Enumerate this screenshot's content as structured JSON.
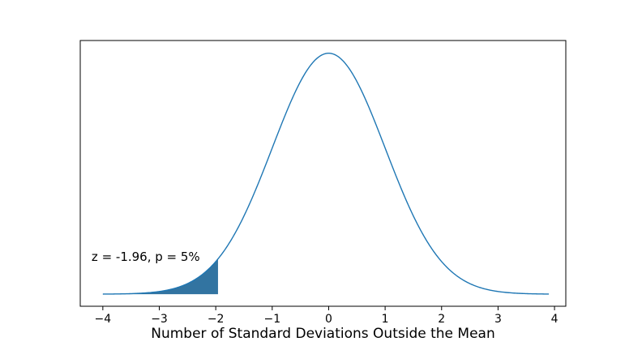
{
  "chart_data": {
    "type": "area",
    "title": "",
    "xlabel": "Number of Standard Deviations Outside the Mean",
    "ylabel": "",
    "xlim": [
      -4.4,
      4.2
    ],
    "ylim": [
      -0.02,
      0.42
    ],
    "x_ticks": [
      -4,
      -3,
      -2,
      -1,
      0,
      1,
      2,
      3,
      4
    ],
    "x_tick_labels": [
      "−4",
      "−3",
      "−2",
      "−1",
      "0",
      "1",
      "2",
      "3",
      "4"
    ],
    "y_ticks_visible": false,
    "grid": false,
    "legend": false,
    "series": [
      {
        "kind": "line",
        "distribution": "standard normal pdf",
        "x_range": [
          -4.0,
          3.9
        ],
        "points": [
          [
            -4.0,
            0.0001
          ],
          [
            -3.5,
            0.0009
          ],
          [
            -3.0,
            0.0044
          ],
          [
            -2.5,
            0.0175
          ],
          [
            -2.0,
            0.054
          ],
          [
            -1.5,
            0.1295
          ],
          [
            -1.0,
            0.242
          ],
          [
            -0.5,
            0.3521
          ],
          [
            0.0,
            0.3989
          ],
          [
            0.5,
            0.3521
          ],
          [
            1.0,
            0.242
          ],
          [
            1.5,
            0.1295
          ],
          [
            2.0,
            0.054
          ],
          [
            2.5,
            0.0175
          ],
          [
            3.0,
            0.0044
          ],
          [
            3.5,
            0.0009
          ],
          [
            3.9,
            0.0002
          ]
        ],
        "color": "#1f77b4"
      },
      {
        "kind": "filled-area",
        "description": "left tail",
        "x_range": [
          -4.0,
          -1.96
        ],
        "color": "#3274a1"
      }
    ],
    "annotations": [
      {
        "text": "z = -1.96, p = 5%",
        "x": -4.2,
        "y": 0.055
      }
    ]
  }
}
